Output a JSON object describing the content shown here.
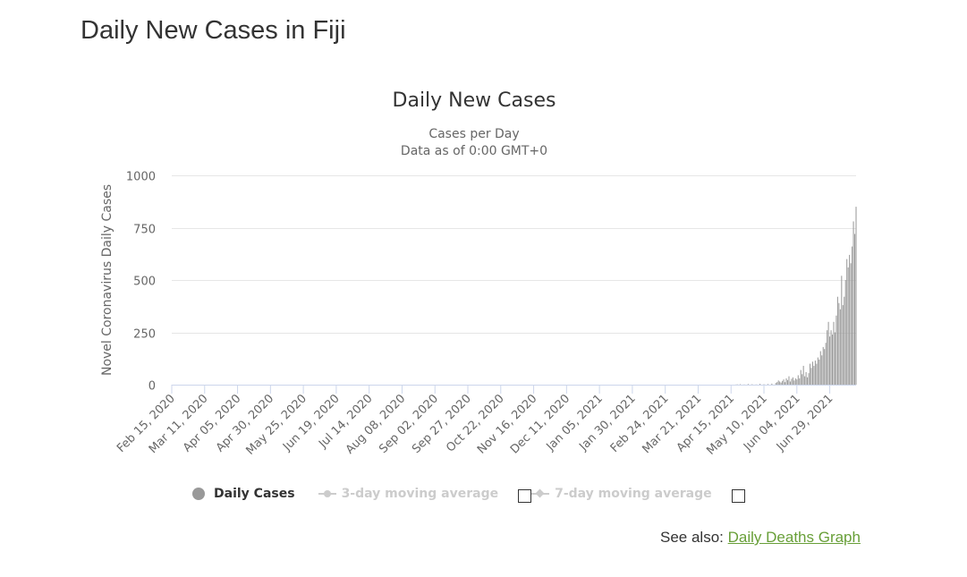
{
  "page": {
    "title": "Daily New Cases in Fiji"
  },
  "chart_data": {
    "type": "bar",
    "title": "Daily New Cases",
    "subtitle_line1": "Cases per Day",
    "subtitle_line2": "Data as of 0:00 GMT+0",
    "ylabel": "Novel Coronavirus Daily Cases",
    "xlabel": "",
    "ylim": [
      0,
      1000
    ],
    "yticks": [
      0,
      250,
      500,
      750,
      1000
    ],
    "grid": true,
    "x_start": "Feb 15, 2020",
    "x_end": "Jul 19, 2021",
    "categories": [
      "Feb 15, 2020",
      "Mar 11, 2020",
      "Apr 05, 2020",
      "Apr 30, 2020",
      "May 25, 2020",
      "Jun 19, 2020",
      "Jul 14, 2020",
      "Aug 08, 2020",
      "Sep 02, 2020",
      "Sep 27, 2020",
      "Oct 22, 2020",
      "Nov 16, 2020",
      "Dec 11, 2020",
      "Jan 05, 2021",
      "Jan 30, 2021",
      "Feb 24, 2021",
      "Mar 21, 2021",
      "Apr 15, 2021",
      "May 10, 2021",
      "Jun 04, 2021",
      "Jun 29, 2021"
    ],
    "series": [
      {
        "name": "Daily Cases",
        "color": "#999999",
        "values": [
          [
            "Apr 19, 2021",
            1
          ],
          [
            "Apr 20, 2021",
            1
          ],
          [
            "Apr 22, 2021",
            2
          ],
          [
            "Apr 25, 2021",
            1
          ],
          [
            "Apr 28, 2021",
            3
          ],
          [
            "May 01, 2021",
            2
          ],
          [
            "May 04, 2021",
            1
          ],
          [
            "May 07, 2021",
            4
          ],
          [
            "May 10, 2021",
            2
          ],
          [
            "May 13, 2021",
            3
          ],
          [
            "May 16, 2021",
            5
          ],
          [
            "May 19, 2021",
            8
          ],
          [
            "May 20, 2021",
            12
          ],
          [
            "May 21, 2021",
            20
          ],
          [
            "May 22, 2021",
            15
          ],
          [
            "May 23, 2021",
            10
          ],
          [
            "May 24, 2021",
            18
          ],
          [
            "May 25, 2021",
            25
          ],
          [
            "May 26, 2021",
            12
          ],
          [
            "May 27, 2021",
            30
          ],
          [
            "May 28, 2021",
            22
          ],
          [
            "May 29, 2021",
            40
          ],
          [
            "May 30, 2021",
            15
          ],
          [
            "May 31, 2021",
            28
          ],
          [
            "Jun 01, 2021",
            35
          ],
          [
            "Jun 02, 2021",
            20
          ],
          [
            "Jun 03, 2021",
            30
          ],
          [
            "Jun 04, 2021",
            25
          ],
          [
            "Jun 05, 2021",
            45
          ],
          [
            "Jun 06, 2021",
            30
          ],
          [
            "Jun 07, 2021",
            70
          ],
          [
            "Jun 08, 2021",
            50
          ],
          [
            "Jun 09, 2021",
            90
          ],
          [
            "Jun 10, 2021",
            40
          ],
          [
            "Jun 11, 2021",
            60
          ],
          [
            "Jun 12, 2021",
            35
          ],
          [
            "Jun 13, 2021",
            55
          ],
          [
            "Jun 14, 2021",
            100
          ],
          [
            "Jun 15, 2021",
            80
          ],
          [
            "Jun 16, 2021",
            110
          ],
          [
            "Jun 17, 2021",
            90
          ],
          [
            "Jun 18, 2021",
            115
          ],
          [
            "Jun 19, 2021",
            100
          ],
          [
            "Jun 20, 2021",
            130
          ],
          [
            "Jun 21, 2021",
            120
          ],
          [
            "Jun 22, 2021",
            160
          ],
          [
            "Jun 23, 2021",
            140
          ],
          [
            "Jun 24, 2021",
            180
          ],
          [
            "Jun 25, 2021",
            170
          ],
          [
            "Jun 26, 2021",
            200
          ],
          [
            "Jun 27, 2021",
            260
          ],
          [
            "Jun 28, 2021",
            300
          ],
          [
            "Jun 29, 2021",
            230
          ],
          [
            "Jun 30, 2021",
            260
          ],
          [
            "Jul 01, 2021",
            240
          ],
          [
            "Jul 02, 2021",
            300
          ],
          [
            "Jul 03, 2021",
            250
          ],
          [
            "Jul 04, 2021",
            330
          ],
          [
            "Jul 05, 2021",
            420
          ],
          [
            "Jul 06, 2021",
            390
          ],
          [
            "Jul 07, 2021",
            360
          ],
          [
            "Jul 08, 2021",
            520
          ],
          [
            "Jul 09, 2021",
            380
          ],
          [
            "Jul 10, 2021",
            420
          ],
          [
            "Jul 11, 2021",
            500
          ],
          [
            "Jul 12, 2021",
            600
          ],
          [
            "Jul 13, 2021",
            560
          ],
          [
            "Jul 14, 2021",
            620
          ],
          [
            "Jul 15, 2021",
            580
          ],
          [
            "Jul 16, 2021",
            660
          ],
          [
            "Jul 17, 2021",
            780
          ],
          [
            "Jul 18, 2021",
            720
          ],
          [
            "Jul 19, 2021",
            850
          ]
        ]
      }
    ],
    "legend": [
      {
        "label": "Daily Cases",
        "active": true,
        "symbol": "dot-icon"
      },
      {
        "label": "3-day moving average",
        "active": false,
        "symbol": "line-marker-icon"
      },
      {
        "label": "7-day moving average",
        "active": false,
        "symbol": "line-diamond-icon"
      }
    ],
    "legend_position": "bottom"
  },
  "see_also": {
    "prefix": "See also:",
    "link_text": "Daily Deaths Graph"
  },
  "colors": {
    "bar": "#999999",
    "grid": "#e6e6e6",
    "axis": "#ccd6eb",
    "link": "#689f38",
    "text": "#333333",
    "tick": "#666666"
  }
}
